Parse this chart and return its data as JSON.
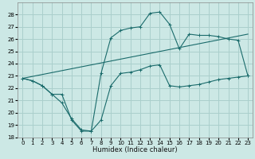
{
  "xlabel": "Humidex (Indice chaleur)",
  "bg_color": "#cce8e5",
  "grid_color": "#aacfcc",
  "line_color": "#1a6b6b",
  "xlim": [
    -0.5,
    23.5
  ],
  "ylim": [
    18,
    29
  ],
  "xtick_labels": [
    "0",
    "1",
    "2",
    "3",
    "4",
    "5",
    "6",
    "7",
    "8",
    "9",
    "10",
    "11",
    "12",
    "13",
    "14",
    "15",
    "16",
    "17",
    "18",
    "19",
    "20",
    "21",
    "22",
    "23"
  ],
  "xtick_vals": [
    0,
    1,
    2,
    3,
    4,
    5,
    6,
    7,
    8,
    9,
    10,
    11,
    12,
    13,
    14,
    15,
    16,
    17,
    18,
    19,
    20,
    21,
    22,
    23
  ],
  "ytick_vals": [
    18,
    19,
    20,
    21,
    22,
    23,
    24,
    25,
    26,
    27,
    28
  ],
  "line1_x": [
    0,
    1,
    2,
    3,
    4,
    5,
    6,
    7,
    8,
    9,
    10,
    11,
    12,
    13,
    14,
    15,
    16,
    17,
    18,
    19,
    20,
    21,
    22,
    23
  ],
  "line1_y": [
    22.8,
    22.6,
    22.2,
    21.5,
    20.8,
    19.5,
    18.6,
    18.5,
    19.4,
    22.2,
    23.2,
    23.3,
    23.5,
    23.8,
    23.9,
    22.2,
    22.1,
    22.2,
    22.3,
    22.5,
    22.7,
    22.8,
    22.9,
    23.0
  ],
  "line2_x": [
    0,
    23
  ],
  "line2_y": [
    22.8,
    26.4
  ],
  "line3_x": [
    0,
    1,
    2,
    3,
    4,
    5,
    6,
    7,
    8,
    9,
    10,
    11,
    12,
    13,
    14,
    15,
    16,
    17,
    18,
    19,
    20,
    21,
    22,
    23
  ],
  "line3_y": [
    22.8,
    22.6,
    22.2,
    21.5,
    21.5,
    19.4,
    18.5,
    18.5,
    23.2,
    26.1,
    26.7,
    26.9,
    27.0,
    28.1,
    28.2,
    27.2,
    25.2,
    26.4,
    26.3,
    26.3,
    26.2,
    26.0,
    25.9,
    23.0
  ],
  "xlabel_fontsize": 6,
  "tick_fontsize": 5
}
